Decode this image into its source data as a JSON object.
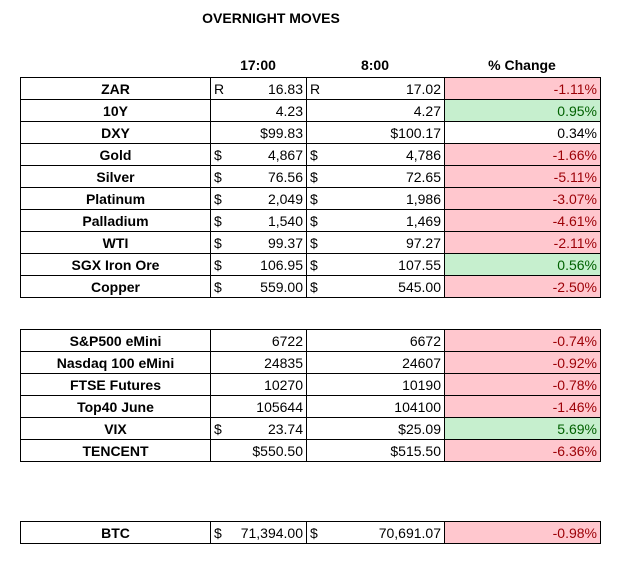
{
  "title": "OVERNIGHT MOVES",
  "headers": {
    "col1": "17:00",
    "col2": "8:00",
    "col3": "% Change"
  },
  "colors": {
    "neg_bg": "#ffc7ce",
    "neg_text": "#9c0006",
    "pos_bg": "#c6efce",
    "pos_text": "#006100"
  },
  "block_a": [
    {
      "name": "ZAR",
      "c1": "R",
      "v1": "16.83",
      "c2": "R",
      "v2": "17.02",
      "pct": "-1.11%",
      "tone": "neg"
    },
    {
      "name": "10Y",
      "c1": "",
      "v1": "4.23",
      "c2": "",
      "v2": "4.27",
      "pct": "0.95%",
      "tone": "pos"
    },
    {
      "name": "DXY",
      "c1": "",
      "v1": "$99.83",
      "c2": "",
      "v2": "$100.17",
      "pct": "0.34%",
      "tone": "neu"
    },
    {
      "name": "Gold",
      "c1": "$",
      "v1": "4,867",
      "c2": "$",
      "v2": "4,786",
      "pct": "-1.66%",
      "tone": "neg"
    },
    {
      "name": "Silver",
      "c1": "$",
      "v1": "76.56",
      "c2": "$",
      "v2": "72.65",
      "pct": "-5.11%",
      "tone": "neg"
    },
    {
      "name": "Platinum",
      "c1": "$",
      "v1": "2,049",
      "c2": "$",
      "v2": "1,986",
      "pct": "-3.07%",
      "tone": "neg"
    },
    {
      "name": "Palladium",
      "c1": "$",
      "v1": "1,540",
      "c2": "$",
      "v2": "1,469",
      "pct": "-4.61%",
      "tone": "neg"
    },
    {
      "name": "WTI",
      "c1": "$",
      "v1": "99.37",
      "c2": "$",
      "v2": "97.27",
      "pct": "-2.11%",
      "tone": "neg"
    },
    {
      "name": "SGX Iron Ore",
      "c1": "$",
      "v1": "106.95",
      "c2": "$",
      "v2": "107.55",
      "pct": "0.56%",
      "tone": "pos"
    },
    {
      "name": "Copper",
      "c1": "$",
      "v1": "559.00",
      "c2": "$",
      "v2": "545.00",
      "pct": "-2.50%",
      "tone": "neg"
    }
  ],
  "block_b": [
    {
      "name": "S&P500 eMini",
      "c1": "",
      "v1": "6722",
      "c2": "",
      "v2": "6672",
      "pct": "-0.74%",
      "tone": "neg"
    },
    {
      "name": "Nasdaq 100 eMini",
      "c1": "",
      "v1": "24835",
      "c2": "",
      "v2": "24607",
      "pct": "-0.92%",
      "tone": "neg"
    },
    {
      "name": "FTSE Futures",
      "c1": "",
      "v1": "10270",
      "c2": "",
      "v2": "10190",
      "pct": "-0.78%",
      "tone": "neg"
    },
    {
      "name": "Top40 June",
      "c1": "",
      "v1": "105644",
      "c2": "",
      "v2": "104100",
      "pct": "-1.46%",
      "tone": "neg"
    },
    {
      "name": "VIX",
      "c1": "$",
      "v1": "23.74",
      "c2": "",
      "v2": "$25.09",
      "pct": "5.69%",
      "tone": "pos"
    },
    {
      "name": "TENCENT",
      "c1": "",
      "v1": "$550.50",
      "c2": "",
      "v2": "$515.50",
      "pct": "-6.36%",
      "tone": "neg"
    }
  ],
  "block_c": [
    {
      "name": "BTC",
      "c1": "$",
      "v1": "71,394.00",
      "c2": "$",
      "v2": "70,691.07",
      "pct": "-0.98%",
      "tone": "neg"
    }
  ]
}
